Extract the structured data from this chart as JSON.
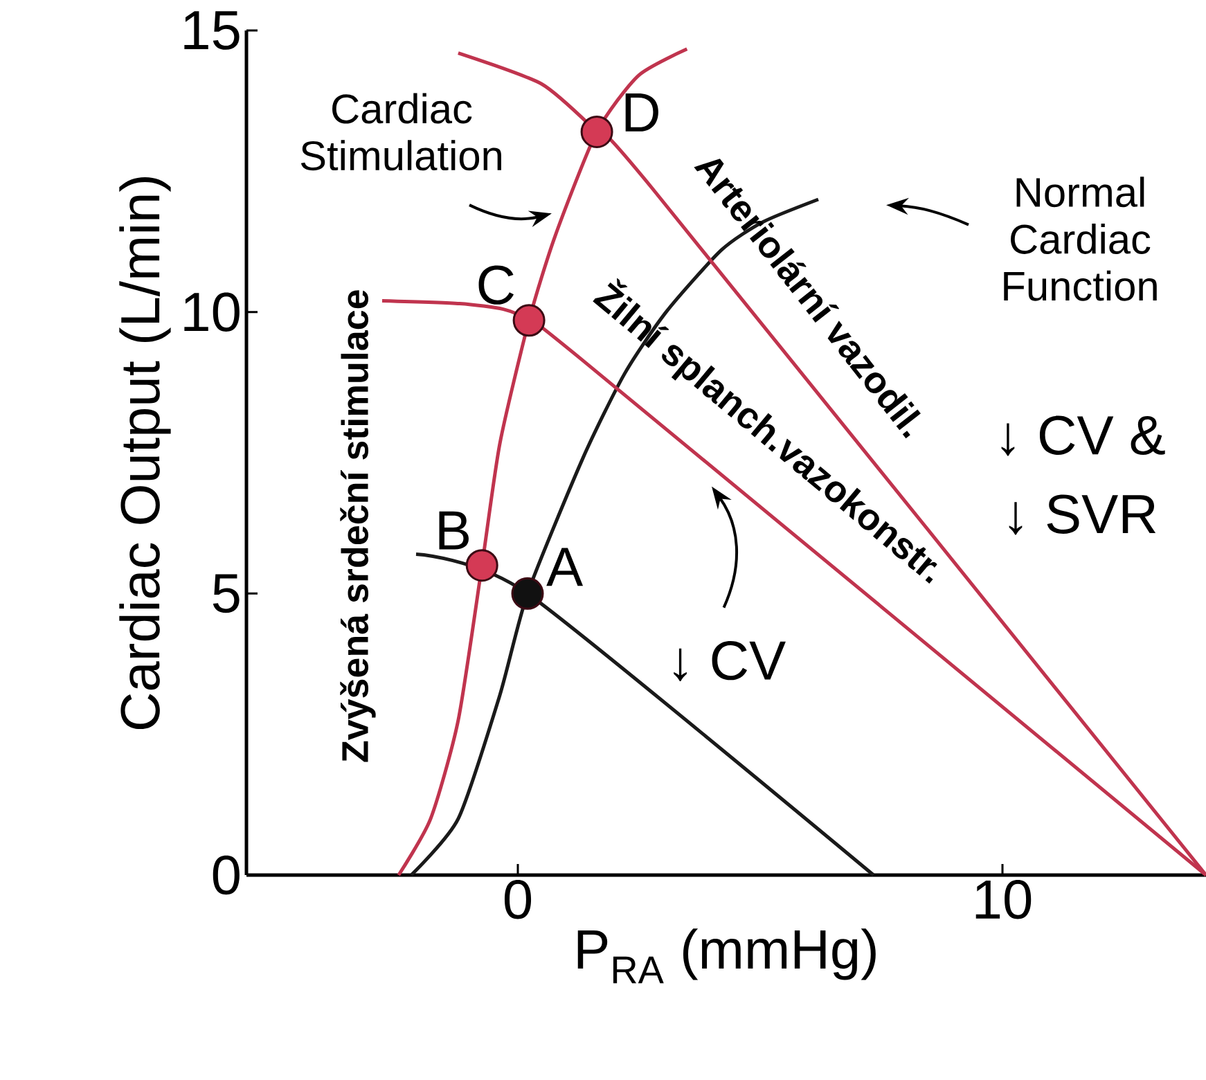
{
  "chart_data": {
    "type": "line",
    "xlabel": "P$_{RA}$ (mmHg)",
    "ylabel": "Cardiac Output (L/min)",
    "xlim": [
      -5.6,
      14.2
    ],
    "ylim": [
      0,
      15
    ],
    "xticks": [
      0,
      10
    ],
    "yticks": [
      0,
      5,
      10,
      15
    ],
    "marker": "none",
    "series": [
      {
        "color": "#1a1a1a",
        "x": [
          -2.2,
          -1.23,
          -0.37,
          0.2,
          1.34,
          2.2,
          3.06,
          4.2,
          5.06,
          6.2
        ],
        "values": [
          0,
          1.0,
          3.2,
          5.0,
          7.4,
          8.9,
          10.0,
          11.1,
          11.6,
          12.0
        ]
      },
      {
        "color": "#1a1a1a",
        "x": [
          -2.1,
          -0.74,
          0.2,
          7.34
        ],
        "values": [
          5.7,
          null,
          5.0,
          0
        ]
      },
      {
        "color": "#c0344e",
        "x": [
          -2.46,
          -1.8,
          -1.23,
          -0.74,
          -0.37,
          0.23,
          0.77,
          1.63,
          2.49,
          3.49
        ],
        "values": [
          0,
          1.0,
          2.75,
          5.5,
          7.67,
          9.85,
          11.35,
          13.2,
          14.2,
          14.67
        ]
      },
      {
        "color": "#c0344e",
        "x": [
          -2.8,
          -1.2,
          -0.3,
          0.23,
          1.34,
          14.2
        ],
        "values": [
          10.2,
          10.15,
          10.05,
          9.85,
          9.14,
          0
        ]
      },
      {
        "color": "#c0344e",
        "x": [
          -1.23,
          0.49,
          1.63,
          2.77,
          14.2
        ],
        "values": [
          14.6,
          14.05,
          13.2,
          12.2,
          0
        ]
      },
      {
        "type": "scatter",
        "marker": "circle",
        "x": [
          0.2,
          -0.74,
          0.23,
          1.63
        ],
        "values": [
          5.0,
          5.5,
          9.85,
          13.2
        ],
        "colors": [
          "#111111",
          "#d43a55",
          "#d43a55",
          "#d43a55"
        ]
      }
    ],
    "annotations": [
      {
        "text": "A",
        "x": 0.2,
        "y": 5.0
      },
      {
        "text": "B",
        "x": -0.74,
        "y": 5.5
      },
      {
        "text": "C",
        "x": 0.23,
        "y": 9.85
      },
      {
        "text": "D",
        "x": 1.63,
        "y": 13.2
      },
      "Cardiac Stimulation",
      "Normal Cardiac Function",
      "↓ CV &",
      "↓ SVR",
      "↓ CV",
      "Zvýšená srdeční stimulace",
      "Arteriolární vazodil.",
      "Žilní splanch.vazokonstr."
    ]
  }
}
